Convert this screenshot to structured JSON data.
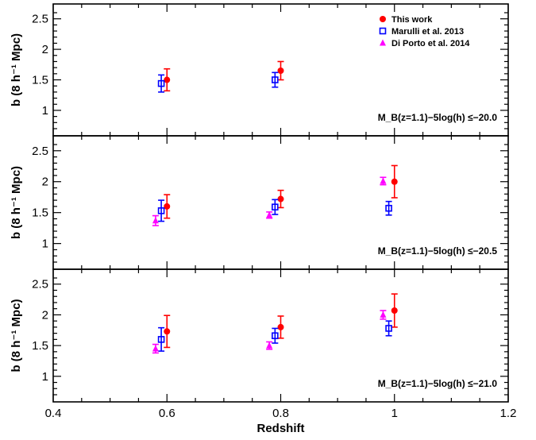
{
  "colors": {
    "this_work": "#ff0000",
    "marulli": "#0000ff",
    "di_porto": "#ff00ff",
    "axes": "#000000"
  },
  "legend": [
    {
      "label": "This work",
      "marker": "filled-circle",
      "color": "#ff0000"
    },
    {
      "label": "Marulli et al. 2013",
      "marker": "open-square",
      "color": "#0000ff"
    },
    {
      "label": "Di Porto et al. 2014",
      "marker": "filled-triangle",
      "color": "#ff00ff"
    }
  ],
  "chart_data": [
    {
      "type": "scatter",
      "xlabel": "Redshift",
      "ylabel": "b (8 h⁻¹ Mpc)",
      "xlim": [
        0.4,
        1.2
      ],
      "ylim": [
        0.7,
        2.6
      ],
      "xticks": [
        "0.4",
        "0.6",
        "0.8",
        "1",
        "1.2"
      ],
      "yticks": [
        "1",
        "1.5",
        "2",
        "2.5"
      ],
      "cut_label": "M_B(z=1.1)−5log(h) ≤−20.0",
      "series": [
        {
          "name": "This work",
          "points": [
            {
              "x": 0.6,
              "y": 1.5,
              "err": 0.18
            },
            {
              "x": 0.8,
              "y": 1.65,
              "err": 0.15
            }
          ]
        },
        {
          "name": "Marulli et al. 2013",
          "points": [
            {
              "x": 0.59,
              "y": 1.44,
              "err": 0.14
            },
            {
              "x": 0.79,
              "y": 1.5,
              "err": 0.12
            }
          ]
        },
        {
          "name": "Di Porto et al. 2014",
          "points": []
        }
      ]
    },
    {
      "type": "scatter",
      "xlabel": "Redshift",
      "ylabel": "b (8 h⁻¹ Mpc)",
      "xlim": [
        0.4,
        1.2
      ],
      "ylim": [
        0.7,
        2.6
      ],
      "xticks": [
        "0.4",
        "0.6",
        "0.8",
        "1",
        "1.2"
      ],
      "yticks": [
        "1",
        "1.5",
        "2",
        "2.5"
      ],
      "cut_label": "M_B(z=1.1)−5log(h) ≤−20.5",
      "series": [
        {
          "name": "This work",
          "points": [
            {
              "x": 0.6,
              "y": 1.6,
              "err": 0.19
            },
            {
              "x": 0.8,
              "y": 1.72,
              "err": 0.14
            },
            {
              "x": 1.0,
              "y": 2.0,
              "err": 0.26
            }
          ]
        },
        {
          "name": "Marulli et al. 2013",
          "points": [
            {
              "x": 0.59,
              "y": 1.53,
              "err": 0.17
            },
            {
              "x": 0.79,
              "y": 1.59,
              "err": 0.12
            },
            {
              "x": 0.99,
              "y": 1.57,
              "err": 0.11
            }
          ]
        },
        {
          "name": "Di Porto et al. 2014",
          "points": [
            {
              "x": 0.58,
              "y": 1.37,
              "err": 0.08
            },
            {
              "x": 0.78,
              "y": 1.46,
              "err": 0.05
            },
            {
              "x": 0.98,
              "y": 2.01,
              "err": 0.06
            }
          ]
        }
      ]
    },
    {
      "type": "scatter",
      "xlabel": "Redshift",
      "ylabel": "b (8 h⁻¹ Mpc)",
      "xlim": [
        0.4,
        1.2
      ],
      "ylim": [
        0.7,
        2.6
      ],
      "xticks": [
        "0.4",
        "0.6",
        "0.8",
        "1",
        "1.2"
      ],
      "yticks": [
        "1",
        "1.5",
        "2",
        "2.5"
      ],
      "cut_label": "M_B(z=1.1)−5log(h) ≤−21.0",
      "series": [
        {
          "name": "This work",
          "points": [
            {
              "x": 0.6,
              "y": 1.73,
              "err": 0.26
            },
            {
              "x": 0.8,
              "y": 1.8,
              "err": 0.18
            },
            {
              "x": 1.0,
              "y": 2.07,
              "err": 0.27
            }
          ]
        },
        {
          "name": "Marulli et al. 2013",
          "points": [
            {
              "x": 0.59,
              "y": 1.6,
              "err": 0.19
            },
            {
              "x": 0.79,
              "y": 1.66,
              "err": 0.12
            },
            {
              "x": 0.99,
              "y": 1.78,
              "err": 0.12
            }
          ]
        },
        {
          "name": "Di Porto et al. 2014",
          "points": [
            {
              "x": 0.58,
              "y": 1.45,
              "err": 0.07
            },
            {
              "x": 0.78,
              "y": 1.5,
              "err": 0.06
            },
            {
              "x": 0.98,
              "y": 2.0,
              "err": 0.07
            }
          ]
        }
      ]
    }
  ]
}
